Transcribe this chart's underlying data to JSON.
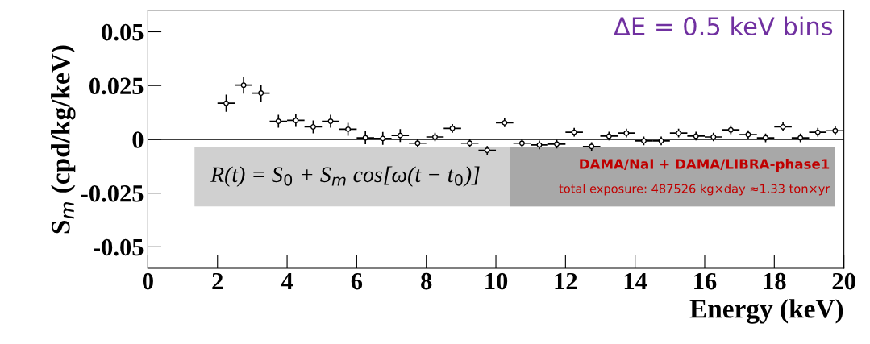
{
  "chart_data": {
    "type": "scatter",
    "xlabel": "Energy (keV)",
    "ylabel": "S$_{m}$ (cpd/kg/keV)",
    "x": [
      2.25,
      2.75,
      3.25,
      3.75,
      4.25,
      4.75,
      5.25,
      5.75,
      6.25,
      6.75,
      7.25,
      7.75,
      8.25,
      8.75,
      9.25,
      9.75,
      10.25,
      10.75,
      11.25,
      11.75,
      12.25,
      12.75,
      13.25,
      13.75,
      14.25,
      14.75,
      15.25,
      15.75,
      16.25,
      16.75,
      17.25,
      17.75,
      18.25,
      18.75,
      19.25,
      19.75
    ],
    "series": [
      {
        "color": "#000000",
        "values": [
          0.0168,
          0.0252,
          0.0215,
          0.0084,
          0.0088,
          0.0058,
          0.0084,
          0.0047,
          0.0007,
          0.0004,
          0.0018,
          -0.0018,
          0.0011,
          0.0051,
          -0.0018,
          -0.0051,
          0.0077,
          -0.0018,
          -0.0026,
          -0.0022,
          0.0033,
          -0.0033,
          0.0015,
          0.0029,
          -0.0007,
          -0.0007,
          0.0029,
          0.0015,
          0.0011,
          0.0044,
          0.0022,
          0.0007,
          0.0058,
          0.0007,
          0.0033,
          0.004
        ],
        "errors": [
          0.004,
          0.004,
          0.004,
          0.003,
          0.003,
          0.003,
          0.003,
          0.003,
          0.003,
          0.003,
          0.003,
          0.002,
          0.002,
          0.002,
          0.002,
          0.002,
          0.002,
          0.002,
          0.002,
          0.002,
          0.002,
          0.002,
          0.002,
          0.002,
          0.002,
          0.002,
          0.002,
          0.002,
          0.002,
          0.002,
          0.002,
          0.002,
          0.002,
          0.002,
          0.002,
          0.002
        ],
        "xerrors": [
          0.25,
          0.25,
          0.25,
          0.25,
          0.25,
          0.25,
          0.25,
          0.25,
          0.25,
          0.25,
          0.25,
          0.25,
          0.25,
          0.25,
          0.25,
          0.25,
          0.25,
          0.25,
          0.25,
          0.25,
          0.25,
          0.25,
          0.25,
          0.25,
          0.25,
          0.25,
          0.25,
          0.25,
          0.25,
          0.25,
          0.25,
          0.25,
          0.25,
          0.25,
          0.25,
          0.25
        ]
      }
    ],
    "marker": "circle",
    "xlim": [
      0,
      20
    ],
    "xticks": [
      0,
      2,
      4,
      6,
      8,
      10,
      12,
      14,
      16,
      18,
      20
    ],
    "ylim": [
      -0.06,
      0.06
    ],
    "yticks": [
      -0.05,
      -0.025,
      0,
      0.025,
      0.05
    ],
    "ref_lines": [
      {
        "axis": "y",
        "value": 0,
        "color": "#000000"
      }
    ],
    "grid": false,
    "legend": false,
    "annotations": [
      "ΔE = 0.5 keV bins",
      "R(t) = S$_{0}$ + S$_{m}$ cos[ω(t − t$_{0}$)]",
      "DAMA/NaI + DAMA/LIBRA-phase1",
      "total exposure: 487526 kg×day ≈1.33 ton×yr"
    ]
  }
}
